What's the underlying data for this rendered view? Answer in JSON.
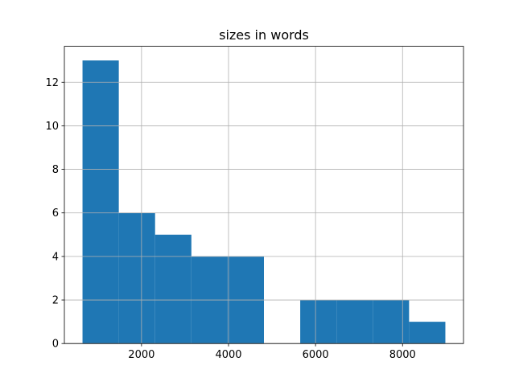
{
  "chart_data": {
    "type": "histogram",
    "title": "sizes in words",
    "bins": [
      644,
      1478,
      2312,
      3146,
      3980,
      4814,
      5648,
      6482,
      7316,
      8150,
      8984
    ],
    "values": [
      13,
      6,
      5,
      4,
      4,
      0,
      2,
      2,
      2,
      1
    ],
    "color": "#1f77b4",
    "xlim": [
      227,
      9401
    ],
    "xticks": [
      2000,
      4000,
      6000,
      8000
    ],
    "ylim": [
      0,
      13.65
    ],
    "yticks": [
      0,
      2,
      4,
      6,
      8,
      10,
      12
    ],
    "grid": true
  }
}
